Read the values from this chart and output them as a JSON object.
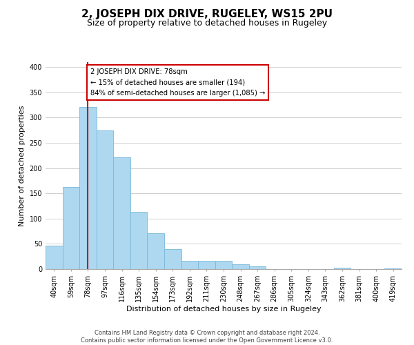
{
  "title": "2, JOSEPH DIX DRIVE, RUGELEY, WS15 2PU",
  "subtitle": "Size of property relative to detached houses in Rugeley",
  "xlabel": "Distribution of detached houses by size in Rugeley",
  "ylabel": "Number of detached properties",
  "footer_lines": [
    "Contains HM Land Registry data © Crown copyright and database right 2024.",
    "Contains public sector information licensed under the Open Government Licence v3.0."
  ],
  "bin_labels": [
    "40sqm",
    "59sqm",
    "78sqm",
    "97sqm",
    "116sqm",
    "135sqm",
    "154sqm",
    "173sqm",
    "192sqm",
    "211sqm",
    "230sqm",
    "248sqm",
    "267sqm",
    "286sqm",
    "305sqm",
    "324sqm",
    "343sqm",
    "362sqm",
    "381sqm",
    "400sqm",
    "419sqm"
  ],
  "bar_values": [
    47,
    163,
    321,
    275,
    221,
    114,
    71,
    39,
    17,
    17,
    16,
    9,
    5,
    0,
    0,
    0,
    0,
    3,
    0,
    0,
    2
  ],
  "bar_color": "#add8f0",
  "bar_edge_color": "#7ab8d8",
  "vline_index": 2,
  "vline_color": "#cc0000",
  "annotation_text": "2 JOSEPH DIX DRIVE: 78sqm\n← 15% of detached houses are smaller (194)\n84% of semi-detached houses are larger (1,085) →",
  "annotation_box_color": "#ffffff",
  "annotation_box_edge": "#cc0000",
  "ylim": [
    0,
    410
  ],
  "yticks": [
    0,
    50,
    100,
    150,
    200,
    250,
    300,
    350,
    400
  ],
  "background_color": "#ffffff",
  "grid_color": "#d0d0d0",
  "title_fontsize": 11,
  "subtitle_fontsize": 9,
  "ylabel_fontsize": 8,
  "xlabel_fontsize": 8,
  "tick_fontsize": 7,
  "footer_fontsize": 6
}
